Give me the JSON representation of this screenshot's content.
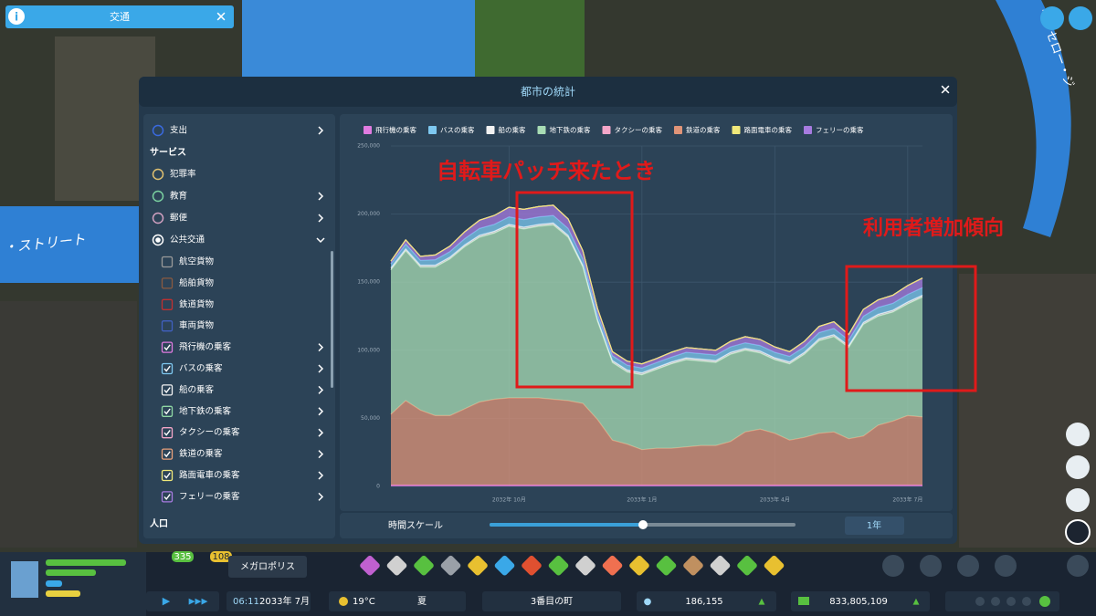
{
  "top_panel": {
    "title": "交通"
  },
  "map_labels": [
    "・ストリート",
    "ー・セロー・ジ"
  ],
  "dialog": {
    "title": "都市の統計",
    "sidebar": [
      {
        "kind": "radio",
        "label": "支出",
        "color": "#3a6ae0",
        "arrow": ">"
      },
      {
        "kind": "header",
        "label": "サービス"
      },
      {
        "kind": "radio",
        "label": "犯罪率",
        "color": "#e0c070"
      },
      {
        "kind": "radio",
        "label": "教育",
        "color": "#7ad0a0",
        "arrow": ">"
      },
      {
        "kind": "radio",
        "label": "郵便",
        "color": "#d0a0c0",
        "arrow": ">"
      },
      {
        "kind": "radio",
        "label": "公共交通",
        "color": "#ffffff",
        "checked": true,
        "arrow": "v"
      },
      {
        "kind": "check",
        "label": "航空貨物",
        "color": "#9a9a9a"
      },
      {
        "kind": "check",
        "label": "船舶貨物",
        "color": "#8a5a40"
      },
      {
        "kind": "check",
        "label": "鉄道貨物",
        "color": "#c03030"
      },
      {
        "kind": "check",
        "label": "車両貨物",
        "color": "#4060c0"
      },
      {
        "kind": "check",
        "label": "飛行機の乗客",
        "color": "#e07be0",
        "checked": true,
        "arrow": ">"
      },
      {
        "kind": "check",
        "label": "バスの乗客",
        "color": "#7ec8f0",
        "checked": true,
        "arrow": ">"
      },
      {
        "kind": "check",
        "label": "船の乗客",
        "color": "#f2f2f2",
        "checked": true,
        "arrow": ">"
      },
      {
        "kind": "check",
        "label": "地下鉄の乗客",
        "color": "#8fd8a4",
        "checked": true,
        "arrow": ">"
      },
      {
        "kind": "check",
        "label": "タクシーの乗客",
        "color": "#f4a6c8",
        "checked": true,
        "arrow": ">"
      },
      {
        "kind": "check",
        "label": "鉄道の乗客",
        "color": "#e8a07a",
        "checked": true,
        "arrow": ">"
      },
      {
        "kind": "check",
        "label": "路面電車の乗客",
        "color": "#f0e87a",
        "checked": true,
        "arrow": ">"
      },
      {
        "kind": "check",
        "label": "フェリーの乗客",
        "color": "#a77be0",
        "checked": true,
        "arrow": ">"
      },
      {
        "kind": "header",
        "label": "人口"
      }
    ],
    "time_scale": {
      "label": "時間スケール",
      "value": "1年"
    }
  },
  "annotations": [
    "自転車パッチ来たとき",
    "利用者増加傾向"
  ],
  "chart_data": {
    "type": "stacked-area",
    "categories": [
      null,
      null,
      null,
      null,
      null,
      null,
      null,
      null,
      "2032年 10月",
      null,
      null,
      null,
      null,
      null,
      null,
      null,
      null,
      "2033年 1月",
      null,
      null,
      null,
      null,
      null,
      null,
      null,
      null,
      "2033年 4月",
      null,
      null,
      null,
      null,
      null,
      null,
      null,
      null,
      "2033年 7月",
      null
    ],
    "series": [
      {
        "name": "飛行機の乗客",
        "color": "#e07be0",
        "values": [
          1000,
          1000,
          1000,
          1000,
          1000,
          1000,
          1000,
          1000,
          1000,
          1000,
          1000,
          1000,
          1000,
          1000,
          1000,
          1000,
          1000,
          1000,
          1000,
          1000,
          1000,
          1000,
          1000,
          1000,
          1000,
          1000,
          1000,
          1000,
          1000,
          1000,
          1000,
          1000,
          1000,
          1000,
          1000,
          1000,
          1000
        ]
      },
      {
        "name": "バスの乗客",
        "color": "#7ec8f0",
        "values": [
          3000,
          3500,
          3500,
          4000,
          4000,
          4500,
          5000,
          5000,
          5500,
          5500,
          5500,
          5500,
          5000,
          4500,
          4000,
          3500,
          3500,
          3500,
          3500,
          3500,
          4000,
          4000,
          4000,
          4000,
          4000,
          4000,
          4000,
          4000,
          4000,
          4500,
          4500,
          4000,
          4500,
          5000,
          5000,
          5500,
          5500
        ]
      },
      {
        "name": "船の乗客",
        "color": "#f2f2f2",
        "values": [
          1500,
          1500,
          1500,
          1500,
          1500,
          1500,
          1500,
          1500,
          1500,
          1500,
          1500,
          1500,
          1500,
          1500,
          1500,
          1500,
          1500,
          1500,
          1500,
          1500,
          1500,
          1500,
          1500,
          1500,
          1500,
          1500,
          1500,
          1500,
          1500,
          1500,
          1500,
          1500,
          1500,
          1500,
          1500,
          1500,
          1500
        ]
      },
      {
        "name": "地下鉄の乗客",
        "color": "#a8dcb4",
        "values": [
          106000,
          110000,
          105000,
          109000,
          115000,
          119000,
          121000,
          122000,
          126000,
          124000,
          126000,
          128000,
          120000,
          100000,
          72000,
          57000,
          53000,
          55000,
          58000,
          62000,
          64000,
          62000,
          61000,
          64000,
          60000,
          56000,
          54000,
          56000,
          61000,
          68000,
          70000,
          67000,
          82000,
          80000,
          80000,
          82000,
          88000
        ]
      },
      {
        "name": "タクシーの乗客",
        "color": "#f4a6c8",
        "values": [
          0,
          0,
          0,
          0,
          0,
          0,
          0,
          0,
          0,
          0,
          0,
          0,
          0,
          0,
          0,
          0,
          0,
          0,
          0,
          0,
          0,
          0,
          0,
          0,
          0,
          0,
          0,
          0,
          0,
          0,
          0,
          0,
          0,
          0,
          0,
          0,
          0
        ]
      },
      {
        "name": "鉄道の乗客",
        "color": "#e09478",
        "values": [
          52000,
          62000,
          55000,
          51000,
          51000,
          56000,
          61000,
          63000,
          64000,
          64000,
          64000,
          63000,
          62000,
          60000,
          48000,
          33000,
          30000,
          26000,
          27000,
          27000,
          28000,
          29000,
          29000,
          32000,
          39000,
          41000,
          38000,
          33000,
          35000,
          38000,
          39000,
          34000,
          36000,
          44000,
          47000,
          51000,
          50000
        ]
      },
      {
        "name": "路面電車の乗客",
        "color": "#f0e87a",
        "values": [
          0,
          0,
          0,
          0,
          0,
          0,
          0,
          0,
          0,
          0,
          0,
          0,
          0,
          0,
          0,
          0,
          0,
          0,
          0,
          0,
          0,
          0,
          0,
          0,
          0,
          0,
          0,
          0,
          0,
          0,
          0,
          0,
          0,
          0,
          0,
          0,
          0
        ]
      },
      {
        "name": "フェリーの乗客",
        "color": "#a77be0",
        "values": [
          2000,
          3000,
          3000,
          3500,
          4000,
          5000,
          6000,
          6500,
          7000,
          7500,
          7500,
          7500,
          7000,
          6000,
          4000,
          3000,
          3000,
          3000,
          3000,
          3500,
          3500,
          3500,
          3500,
          4000,
          4500,
          4500,
          4000,
          3500,
          4000,
          4500,
          5000,
          4000,
          5000,
          5500,
          6000,
          6500,
          7000
        ]
      }
    ],
    "ylim": [
      0,
      250000
    ],
    "yticks": [
      0,
      {
        "value": 50000,
        "label": "50,000"
      },
      {
        "value": 100000,
        "label": "100,000"
      },
      {
        "value": 150000,
        "label": "150,000"
      },
      {
        "value": 200000,
        "label": "200,000"
      },
      {
        "value": 250000,
        "label": "250,000"
      }
    ],
    "grid": true
  },
  "bottom_bar": {
    "level": "335",
    "milestone": "108",
    "city_size": "メガロポリス",
    "time": "06:11",
    "date": "2033年 7月",
    "temperature": "19°C",
    "season": "夏",
    "city_name": "3番目の町",
    "population": "186,155",
    "money": "833,805,109"
  }
}
